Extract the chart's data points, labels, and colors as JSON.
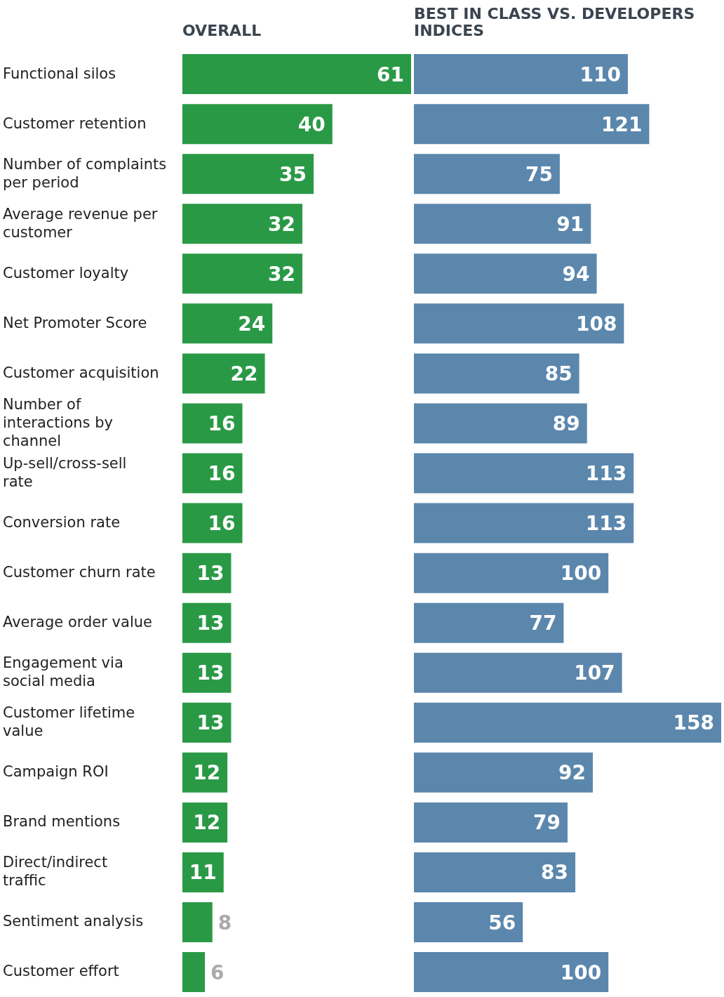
{
  "chart_data": [
    {
      "type": "bar",
      "orientation": "horizontal",
      "title": "OVERALL",
      "tick_labels": "y",
      "data_labels": true,
      "categories": [
        "Functional silos",
        "Customer retention",
        "Number of complaints per period",
        "Average revenue per customer",
        "Customer loyalty",
        "Net Promoter Score",
        "Customer acquisition",
        "Number of interactions by channel",
        "Up-sell/cross-sell rate",
        "Conversion rate",
        "Customer churn rate",
        "Average order value",
        "Engagement via social media",
        "Customer lifetime value",
        "Campaign ROI",
        "Brand mentions",
        "Direct/indirect traffic",
        "Sentiment analysis",
        "Customer effort"
      ],
      "values": [
        61,
        40,
        35,
        32,
        32,
        24,
        22,
        16,
        16,
        16,
        13,
        13,
        13,
        13,
        12,
        12,
        11,
        8,
        6
      ],
      "color": "#2a9946"
    },
    {
      "type": "bar",
      "orientation": "horizontal",
      "title": "BEST IN CLASS VS. DEVELOPERS INDICES",
      "tick_labels": false,
      "data_labels": true,
      "categories": [
        null,
        null,
        null,
        null,
        null,
        null,
        null,
        null,
        null,
        null,
        null,
        null,
        null,
        null,
        null,
        null,
        null,
        null,
        null
      ],
      "values": [
        110,
        121,
        75,
        91,
        94,
        108,
        85,
        89,
        113,
        113,
        100,
        77,
        107,
        158,
        92,
        79,
        83,
        56,
        100
      ],
      "color": "#5b87ad"
    }
  ]
}
